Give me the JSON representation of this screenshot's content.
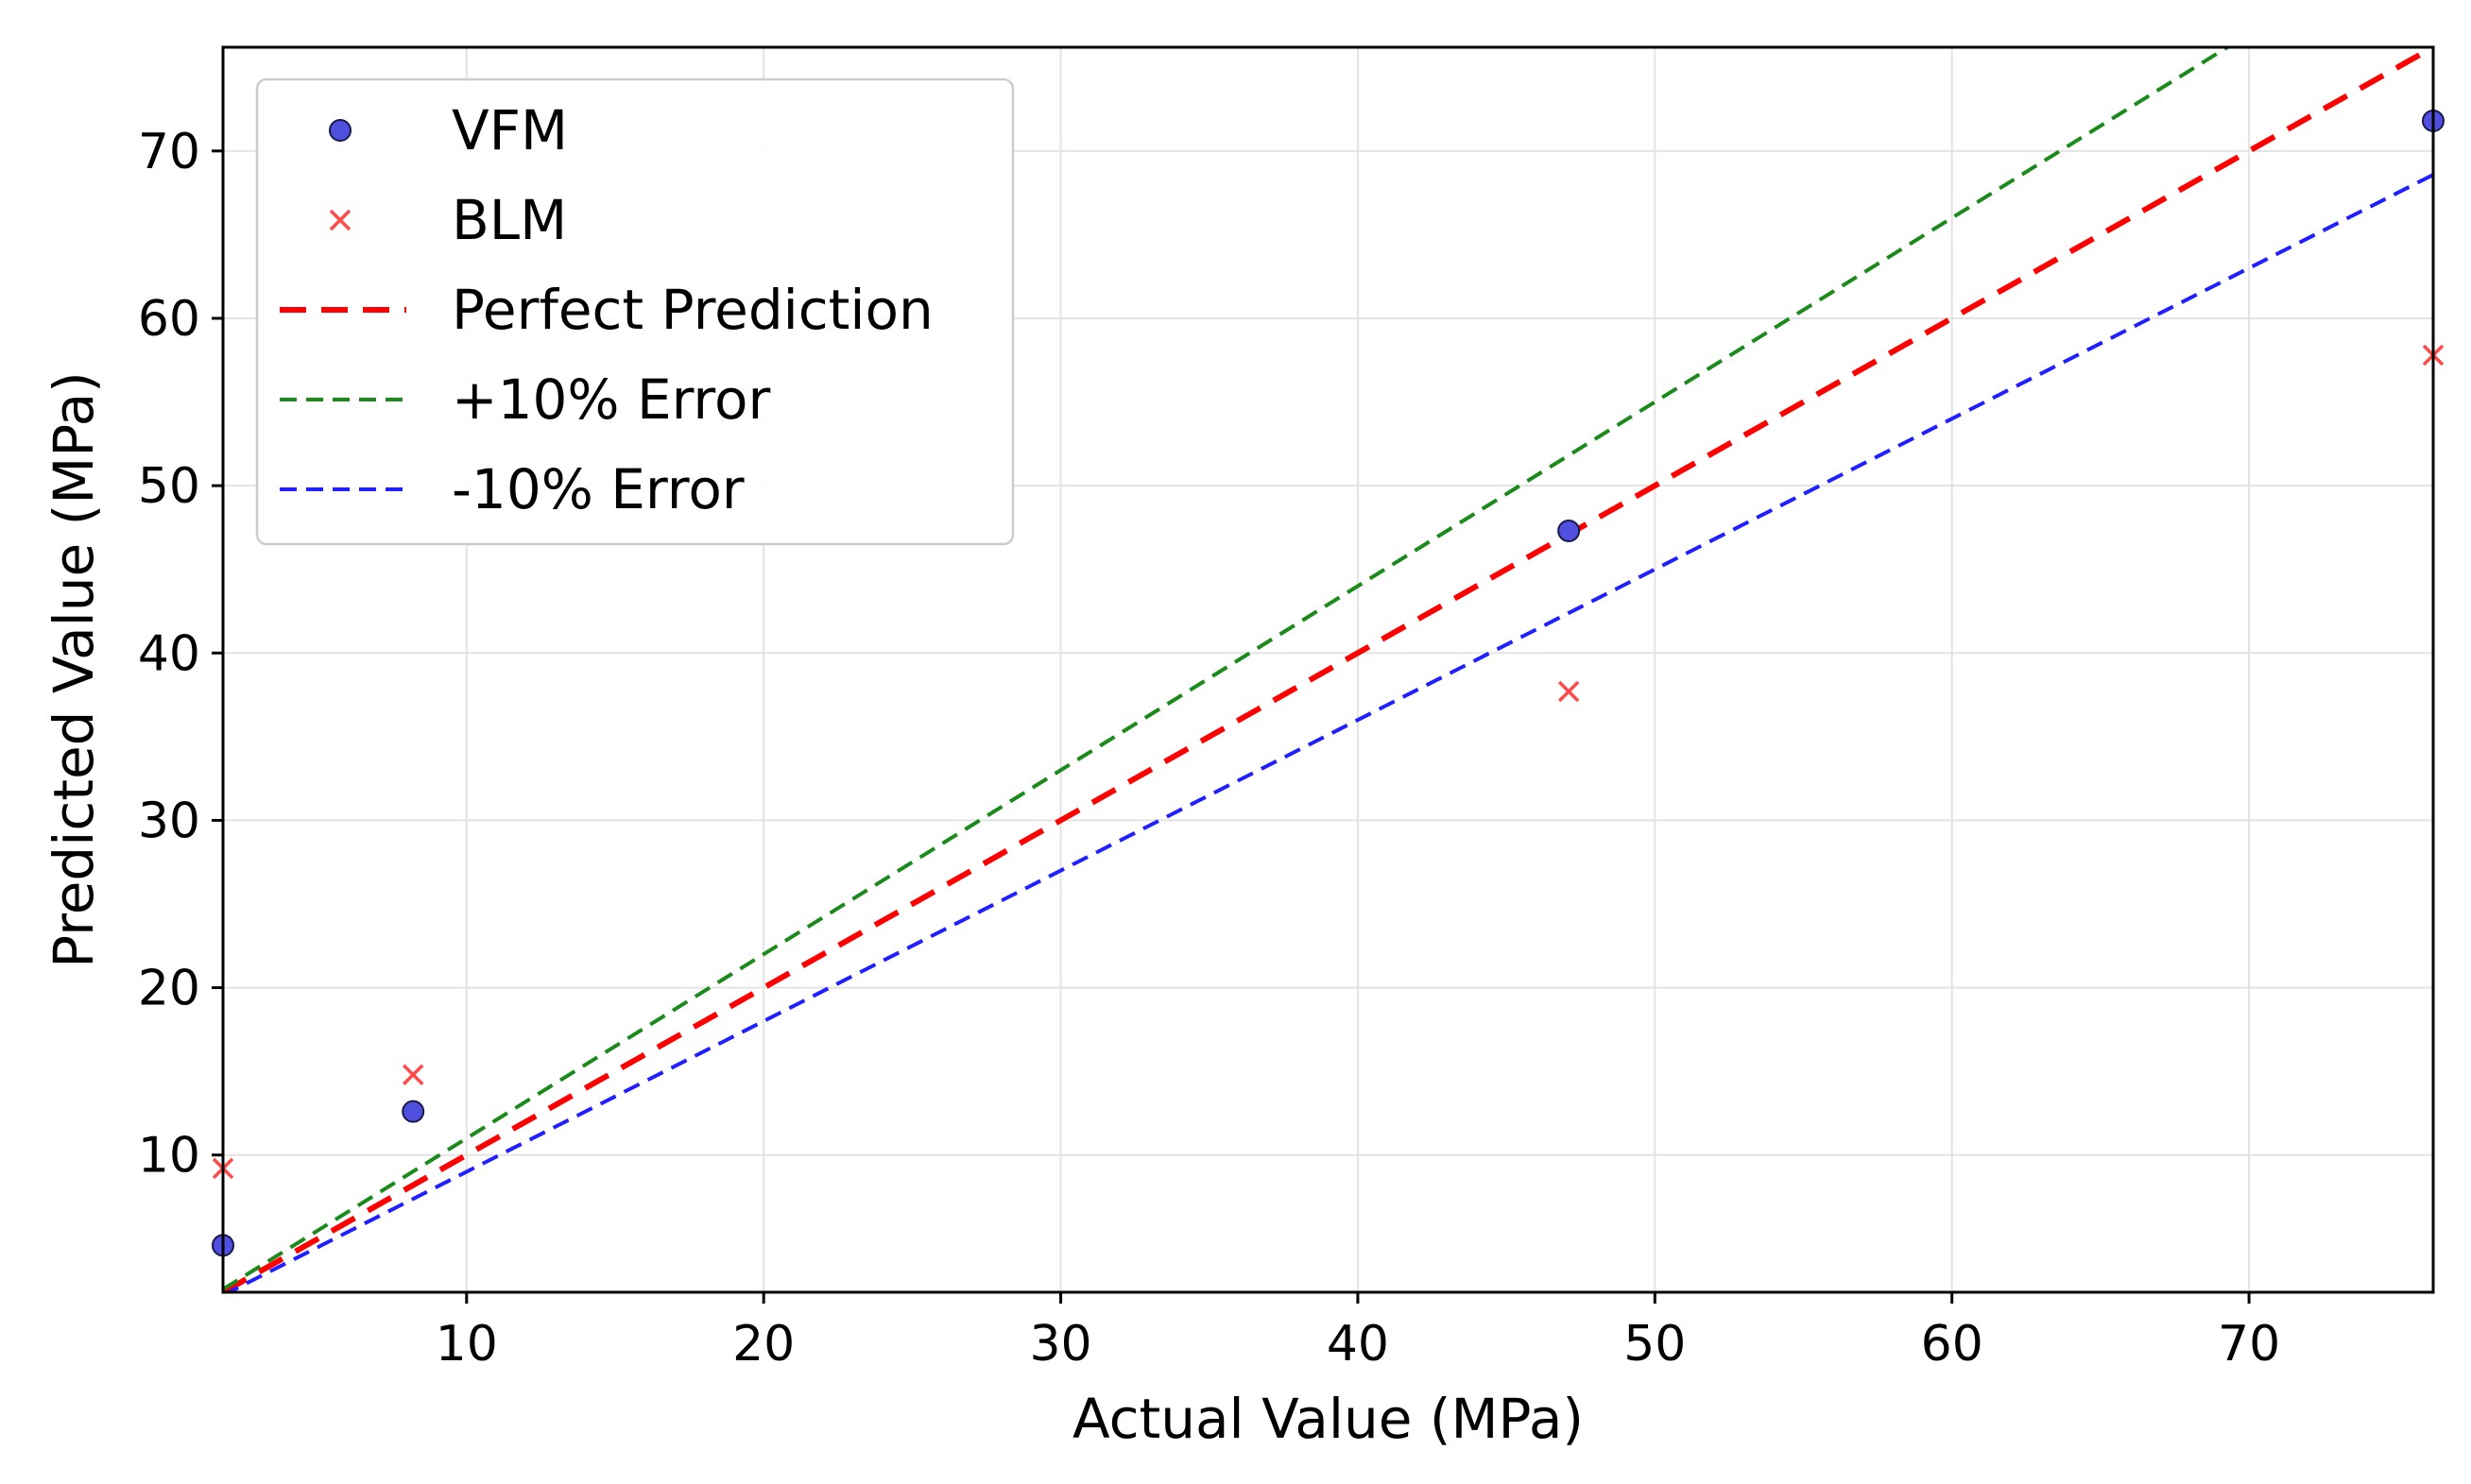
{
  "chart_data": {
    "type": "scatter",
    "title": "",
    "xlabel": "Actual Value (MPa)",
    "ylabel": "Predicted Value (MPa)",
    "xlim": [
      1.8,
      76.2
    ],
    "ylim": [
      1.8,
      76.2
    ],
    "xticks": [
      10,
      20,
      30,
      40,
      50,
      60,
      70
    ],
    "yticks": [
      10,
      20,
      30,
      40,
      50,
      60,
      70
    ],
    "grid": true,
    "legend_position": "top-left",
    "series": [
      {
        "name": "VFM",
        "kind": "scatter",
        "marker": "circle",
        "color": "#4f4fe0",
        "edge_color": "#1a1a4a",
        "x": [
          1.8,
          8.2,
          47.1,
          76.2
        ],
        "y": [
          4.6,
          12.6,
          47.3,
          71.8
        ]
      },
      {
        "name": "BLM",
        "kind": "scatter",
        "marker": "x",
        "color": "#ff4a4a",
        "x": [
          1.8,
          8.2,
          47.1,
          76.2
        ],
        "y": [
          9.2,
          14.8,
          37.7,
          57.8
        ]
      },
      {
        "name": "Perfect Prediction",
        "kind": "line",
        "slope": 1.0,
        "color": "#ff0000",
        "dash": "dashed-thick"
      },
      {
        "name": "+10% Error",
        "kind": "line",
        "slope": 1.1,
        "color": "#1a8a1a",
        "dash": "dashed"
      },
      {
        "name": "-10% Error",
        "kind": "line",
        "slope": 0.9,
        "color": "#1f1fff",
        "dash": "dashed"
      }
    ]
  }
}
